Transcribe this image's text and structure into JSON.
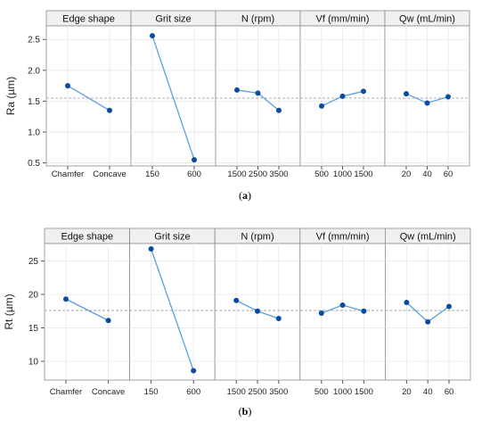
{
  "chart_data": [
    {
      "type": "line",
      "caption_pre": "(",
      "caption_bold": "a",
      "caption_post": ")",
      "ylabel": "Ra (µm)",
      "ylim": [
        0.45,
        2.72
      ],
      "yticks": [
        0.5,
        1.0,
        1.5,
        2.0,
        2.5
      ],
      "ytick_labels": [
        "0.5",
        "1.0",
        "1.5",
        "2.0",
        "2.5"
      ],
      "mean_line": 1.55,
      "grid": true,
      "panels": [
        {
          "name": "Edge shape",
          "categories": [
            "Chamfer",
            "Concave"
          ],
          "values": [
            1.75,
            1.35
          ]
        },
        {
          "name": "Grit size",
          "categories": [
            "150",
            "600"
          ],
          "values": [
            2.56,
            0.55
          ]
        },
        {
          "name": "N (rpm)",
          "categories": [
            "1500",
            "2500",
            "3500"
          ],
          "values": [
            1.68,
            1.63,
            1.35
          ]
        },
        {
          "name": "Vf (mm/min)",
          "categories": [
            "500",
            "1000",
            "1500"
          ],
          "values": [
            1.42,
            1.58,
            1.66
          ]
        },
        {
          "name": "Qw (mL/min)",
          "categories": [
            "20",
            "40",
            "60"
          ],
          "values": [
            1.62,
            1.47,
            1.57
          ]
        }
      ]
    },
    {
      "type": "line",
      "caption_pre": "(",
      "caption_bold": "b",
      "caption_post": ")",
      "ylabel": "Rt (µm)",
      "ylim": [
        7.2,
        27.6
      ],
      "yticks": [
        10,
        15,
        20,
        25
      ],
      "ytick_labels": [
        "10",
        "15",
        "20",
        "25"
      ],
      "mean_line": 17.6,
      "grid": true,
      "panels": [
        {
          "name": "Edge shape",
          "categories": [
            "Chamfer",
            "Concave"
          ],
          "values": [
            19.3,
            16.1
          ]
        },
        {
          "name": "Grit size",
          "categories": [
            "150",
            "600"
          ],
          "values": [
            26.8,
            8.6
          ]
        },
        {
          "name": "N (rpm)",
          "categories": [
            "1500",
            "2500",
            "3500"
          ],
          "values": [
            19.1,
            17.5,
            16.4
          ]
        },
        {
          "name": "Vf (mm/min)",
          "categories": [
            "500",
            "1000",
            "1500"
          ],
          "values": [
            17.2,
            18.4,
            17.5
          ]
        },
        {
          "name": "Qw (mL/min)",
          "categories": [
            "20",
            "40",
            "60"
          ],
          "values": [
            18.8,
            15.9,
            18.2
          ]
        }
      ]
    }
  ],
  "colors": {
    "line": "#5aa0e0",
    "marker": "#0b4aa2",
    "mean_line": "#a6a6a6",
    "grid": "#e6e6e6",
    "header_bg": "#f0f0f0",
    "frame": "#8c8c8c"
  }
}
